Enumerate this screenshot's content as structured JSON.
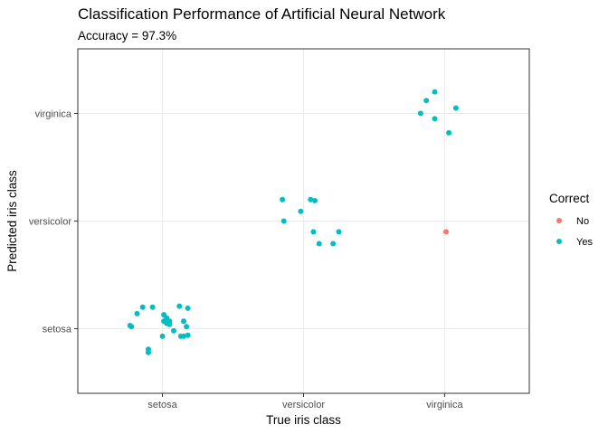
{
  "chart_data": {
    "type": "scatter",
    "title": "Classification Performance of Artificial Neural Network",
    "subtitle": "Accuracy = 97.3%",
    "xlabel": "True iris class",
    "ylabel": "Predicted iris class",
    "x_categories": [
      "setosa",
      "versicolor",
      "virginica"
    ],
    "y_categories": [
      "setosa",
      "versicolor",
      "virginica"
    ],
    "x_range": [
      0.4,
      3.6
    ],
    "y_range": [
      0.4,
      3.6
    ],
    "grid": true,
    "legend": {
      "title": "Correct",
      "position": "right",
      "entries": [
        {
          "label": "No",
          "color": "#F8766D"
        },
        {
          "label": "Yes",
          "color": "#00BFC4"
        }
      ]
    },
    "series": [
      {
        "name": "No",
        "color": "#F8766D",
        "points": [
          {
            "x": 3.01,
            "y": 1.9
          }
        ]
      },
      {
        "name": "Yes",
        "color": "#00BFC4",
        "points": [
          {
            "x": 0.77,
            "y": 1.03
          },
          {
            "x": 0.78,
            "y": 1.02
          },
          {
            "x": 0.82,
            "y": 1.14
          },
          {
            "x": 0.86,
            "y": 1.2
          },
          {
            "x": 0.9,
            "y": 0.81
          },
          {
            "x": 0.9,
            "y": 0.78
          },
          {
            "x": 0.9,
            "y": 0.78
          },
          {
            "x": 0.93,
            "y": 1.2
          },
          {
            "x": 1.0,
            "y": 0.93
          },
          {
            "x": 1.01,
            "y": 1.13
          },
          {
            "x": 1.01,
            "y": 1.07
          },
          {
            "x": 1.03,
            "y": 1.1
          },
          {
            "x": 1.03,
            "y": 1.05
          },
          {
            "x": 1.05,
            "y": 1.07
          },
          {
            "x": 1.05,
            "y": 1.04
          },
          {
            "x": 1.08,
            "y": 0.98
          },
          {
            "x": 1.12,
            "y": 1.21
          },
          {
            "x": 1.13,
            "y": 0.93
          },
          {
            "x": 1.15,
            "y": 0.93
          },
          {
            "x": 1.15,
            "y": 1.07
          },
          {
            "x": 1.17,
            "y": 1.02
          },
          {
            "x": 1.18,
            "y": 0.94
          },
          {
            "x": 1.18,
            "y": 1.19
          },
          {
            "x": 1.85,
            "y": 2.2
          },
          {
            "x": 1.86,
            "y": 2.0
          },
          {
            "x": 1.98,
            "y": 2.09
          },
          {
            "x": 2.05,
            "y": 2.2
          },
          {
            "x": 2.07,
            "y": 1.9
          },
          {
            "x": 2.08,
            "y": 2.19
          },
          {
            "x": 2.11,
            "y": 1.79
          },
          {
            "x": 2.21,
            "y": 1.79
          },
          {
            "x": 2.25,
            "y": 1.9
          },
          {
            "x": 2.83,
            "y": 3.0
          },
          {
            "x": 2.87,
            "y": 3.12
          },
          {
            "x": 2.93,
            "y": 3.2
          },
          {
            "x": 2.93,
            "y": 2.95
          },
          {
            "x": 3.03,
            "y": 2.82
          },
          {
            "x": 3.08,
            "y": 3.05
          }
        ]
      }
    ]
  }
}
